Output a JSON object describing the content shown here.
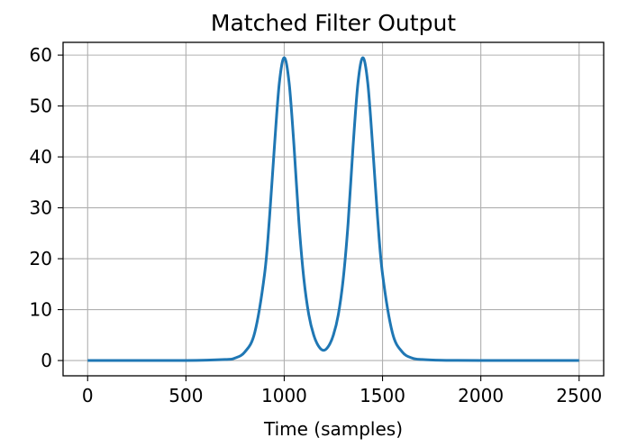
{
  "chart_data": {
    "type": "line",
    "title": "Matched Filter Output",
    "xlabel": "Time (samples)",
    "ylabel": "",
    "xlim": [
      -125,
      2625
    ],
    "ylim": [
      -3,
      62.5
    ],
    "x_ticks": [
      0,
      500,
      1000,
      1500,
      2000,
      2500
    ],
    "y_ticks": [
      0,
      10,
      20,
      30,
      40,
      50,
      60
    ],
    "grid": true,
    "series": [
      {
        "color": "#1f77b4",
        "x": [
          0,
          500,
          700,
          750,
          800,
          850,
          900,
          925,
          950,
          975,
          1000,
          1025,
          1050,
          1075,
          1100,
          1125,
          1150,
          1175,
          1200,
          1225,
          1250,
          1275,
          1300,
          1325,
          1350,
          1375,
          1400,
          1425,
          1450,
          1475,
          1500,
          1550,
          1600,
          1650,
          1700,
          1800,
          2000,
          2500
        ],
        "y": [
          0,
          0,
          0.2,
          0.5,
          1.7,
          5.5,
          17.0,
          28.0,
          42.0,
          54.5,
          59.5,
          54.5,
          42.0,
          27.0,
          16.0,
          9.0,
          5.0,
          2.8,
          2.0,
          2.8,
          5.0,
          9.0,
          16.0,
          27.0,
          42.0,
          54.5,
          59.5,
          54.5,
          42.0,
          28.0,
          17.0,
          5.5,
          1.7,
          0.5,
          0.2,
          0.05,
          0,
          0
        ]
      }
    ]
  }
}
